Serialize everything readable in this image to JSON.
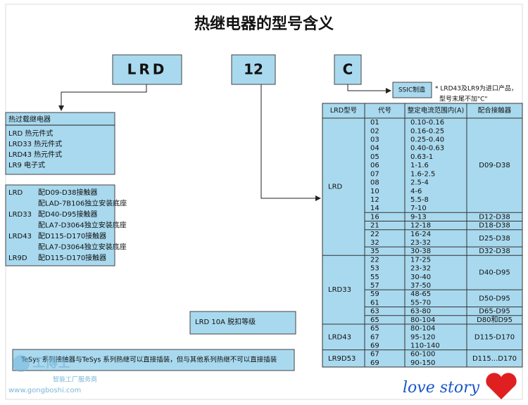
{
  "title": "热继电器的型号含义",
  "code_boxes": [
    "LRD",
    "12",
    "C"
  ],
  "ssic": "SSIC制造",
  "note": [
    "* LRD43及LR9为进口产品，",
    "型号末尾不加\"C\""
  ],
  "relay_box": {
    "header": "热过载继电器",
    "items": [
      "LRD 热元件式",
      "LRD33 热元件式",
      "LRD43 热元件式",
      "LR9 电子式"
    ]
  },
  "fit_box": [
    {
      "model": "LRD",
      "lines": [
        "配D09-D38接触器",
        "配LAD-7B106独立安装底座"
      ]
    },
    {
      "model": "LRD33",
      "lines": [
        "配D40-D95接触器",
        "配LA7-D3064独立安装底座"
      ]
    },
    {
      "model": "LRD43",
      "lines": [
        "配D115-D170接触器",
        "配LA7-D3064独立安装底座"
      ]
    },
    {
      "model": "LR9D",
      "lines": [
        "配D115-D170接触器"
      ]
    }
  ],
  "trip_box": "LRD 10A 脱扣等级",
  "bottom_note": "TeSys 系列接触器与TeSys 系列热继可以直接插装，但与其他系列热继不可以直接插装",
  "table": {
    "headers": [
      "LRD型号",
      "代号",
      "整定电流范围内(A)",
      "配合接触器"
    ],
    "models": [
      {
        "model": "LRD",
        "groups": [
          {
            "contactor": "D09-D38",
            "rows": [
              [
                "01",
                "0.10-0.16"
              ],
              [
                "02",
                "0.16-0.25"
              ],
              [
                "03",
                "0.25-0.40"
              ],
              [
                "04",
                "0.40-0.63"
              ],
              [
                "05",
                "0.63-1"
              ],
              [
                "06",
                "1-1.6"
              ],
              [
                "07",
                "1.6-2.5"
              ],
              [
                "08",
                "2.5-4"
              ],
              [
                "10",
                "4-6"
              ],
              [
                "12",
                "5.5-8"
              ],
              [
                "14",
                "7-10"
              ]
            ]
          },
          {
            "contactor": "D12-D38",
            "rows": [
              [
                "16",
                "9-13"
              ]
            ]
          },
          {
            "contactor": "D18-D38",
            "rows": [
              [
                "21",
                "12-18"
              ]
            ]
          },
          {
            "contactor": "D25-D38",
            "rows": [
              [
                "22",
                "16-24"
              ],
              [
                "32",
                "23-32"
              ]
            ]
          },
          {
            "contactor": "D32-D38",
            "rows": [
              [
                "35",
                "30-38"
              ]
            ]
          }
        ]
      },
      {
        "model": "LRD33",
        "groups": [
          {
            "contactor": "D40-D95",
            "rows": [
              [
                "22",
                "17-25"
              ],
              [
                "53",
                "23-32"
              ],
              [
                "55",
                "30-40"
              ],
              [
                "57",
                "37-50"
              ]
            ]
          },
          {
            "contactor": "D50-D95",
            "rows": [
              [
                "59",
                "48-65"
              ],
              [
                "61",
                "55-70"
              ]
            ]
          },
          {
            "contactor": "D65-D95",
            "rows": [
              [
                "63",
                "63-80"
              ]
            ]
          },
          {
            "contactor": "D80和D95",
            "rows": [
              [
                "65",
                "80-104"
              ]
            ]
          }
        ]
      },
      {
        "model": "LRD43",
        "groups": [
          {
            "contactor": "D115-D170",
            "rows": [
              [
                "65",
                "80-104"
              ],
              [
                "67",
                "95-120"
              ],
              [
                "69",
                "110-140"
              ]
            ]
          }
        ]
      },
      {
        "model": "LR9D53",
        "groups": [
          {
            "contactor": "D115...D170",
            "rows": [
              [
                "67",
                "60-100"
              ],
              [
                "69",
                "90-150"
              ]
            ]
          }
        ]
      }
    ]
  },
  "watermark": {
    "brand": "工博士",
    "slogan": "智能工厂服务商",
    "url": "www.gongboshi.com",
    "signature": "love story"
  }
}
